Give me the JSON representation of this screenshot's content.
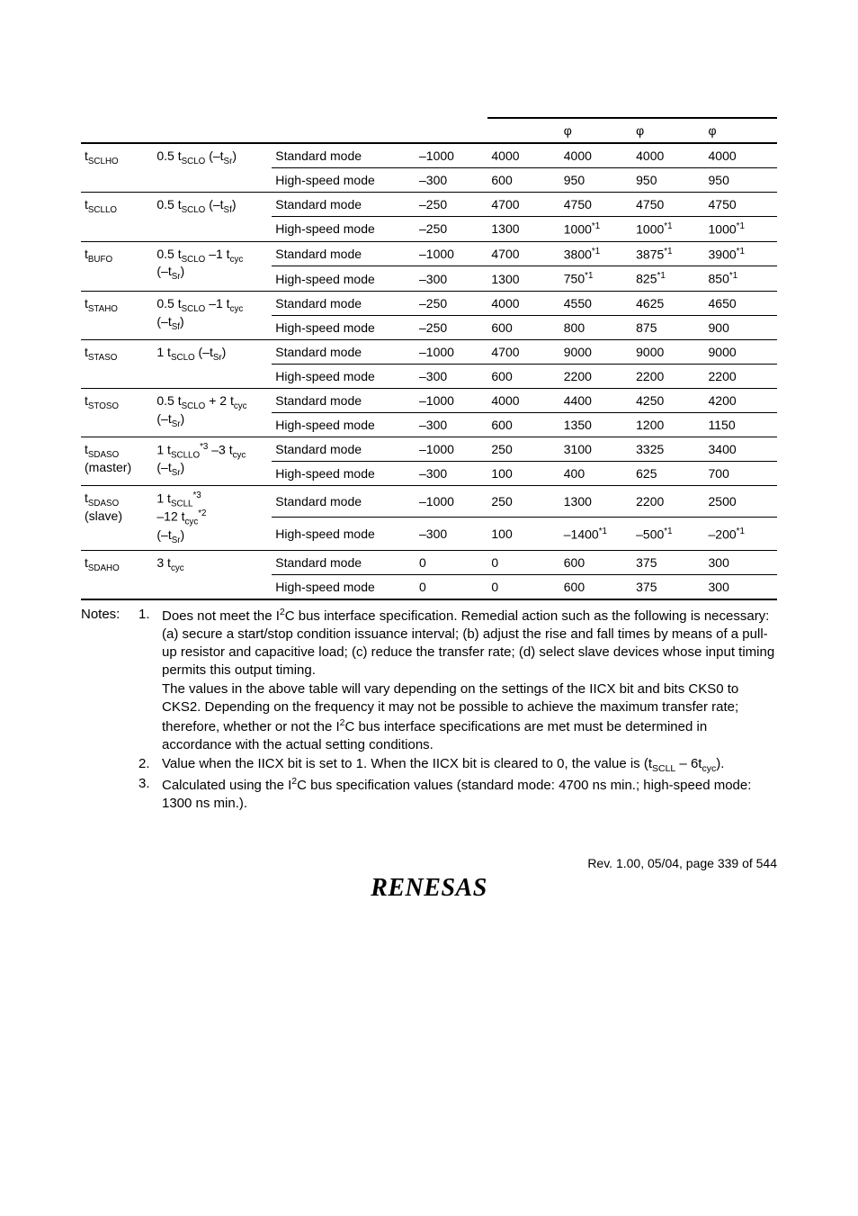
{
  "header": {
    "phi1": "φ",
    "phi2": "φ",
    "phi3": "φ"
  },
  "rows": [
    {
      "item_html": "t<sub>SCLHO</sub>",
      "formula_html": "0.5 t<sub>SCLO</sub> (–t<sub>Sr</sub>)",
      "modes": [
        {
          "mode": "Standard mode",
          "v1": "–1000",
          "v2": "4000",
          "c1": "4000",
          "c2": "4000",
          "c3": "4000"
        },
        {
          "mode": "High-speed mode",
          "v1": "–300",
          "v2": "600",
          "c1": "950",
          "c2": "950",
          "c3": "950"
        }
      ]
    },
    {
      "item_html": "t<sub>SCLLO</sub>",
      "formula_html": "0.5 t<sub>SCLO</sub> (–t<sub>Sf</sub>)",
      "modes": [
        {
          "mode": "Standard mode",
          "v1": "–250",
          "v2": "4700",
          "c1": "4750",
          "c2": "4750",
          "c3": "4750"
        },
        {
          "mode": "High-speed mode",
          "v1": "–250",
          "v2": "1300",
          "c1": "1000<sup>*1</sup>",
          "c2": "1000<sup>*1</sup>",
          "c3": "1000<sup>*1</sup>"
        }
      ]
    },
    {
      "item_html": "t<sub>BUFO</sub>",
      "formula_html": "0.5 t<sub>SCLO</sub> –1 t<sub>cyc</sub><br>(–t<sub>Sr</sub>)",
      "modes": [
        {
          "mode": "Standard mode",
          "v1": "–1000",
          "v2": "4700",
          "c1": "3800<sup>*1</sup>",
          "c2": "3875<sup>*1</sup>",
          "c3": "3900<sup>*1</sup>"
        },
        {
          "mode": "High-speed mode",
          "v1": "–300",
          "v2": "1300",
          "c1": "750<sup>*1</sup>",
          "c2": "825<sup>*1</sup>",
          "c3": "850<sup>*1</sup>"
        }
      ]
    },
    {
      "item_html": "t<sub>STAHO</sub>",
      "formula_html": "0.5 t<sub>SCLO</sub> –1 t<sub>cyc</sub><br>(–t<sub>Sf</sub>)",
      "modes": [
        {
          "mode": "Standard mode",
          "v1": "–250",
          "v2": "4000",
          "c1": "4550",
          "c2": "4625",
          "c3": "4650"
        },
        {
          "mode": "High-speed mode",
          "v1": "–250",
          "v2": "600",
          "c1": "800",
          "c2": "875",
          "c3": "900"
        }
      ]
    },
    {
      "item_html": "t<sub>STASO</sub>",
      "formula_html": "1 t<sub>SCLO</sub> (–t<sub>Sr</sub>)",
      "modes": [
        {
          "mode": "Standard mode",
          "v1": "–1000",
          "v2": "4700",
          "c1": "9000",
          "c2": "9000",
          "c3": "9000"
        },
        {
          "mode": "High-speed mode",
          "v1": "–300",
          "v2": "600",
          "c1": "2200",
          "c2": "2200",
          "c3": "2200"
        }
      ]
    },
    {
      "item_html": "t<sub>STOSO</sub>",
      "formula_html": "0.5 t<sub>SCLO</sub> + 2 t<sub>cyc</sub><br>(–t<sub>Sr</sub>)",
      "modes": [
        {
          "mode": "Standard mode",
          "v1": "–1000",
          "v2": "4000",
          "c1": "4400",
          "c2": "4250",
          "c3": "4200"
        },
        {
          "mode": "High-speed mode",
          "v1": "–300",
          "v2": "600",
          "c1": "1350",
          "c2": "1200",
          "c3": "1150"
        }
      ]
    },
    {
      "item_html": "t<sub>SDASO</sub><br>(master)",
      "formula_html": "1 t<sub>SCLLO</sub><sup>*3</sup> –3 t<sub>cyc</sub><br>(–t<sub>Sr</sub>)",
      "modes": [
        {
          "mode": "Standard mode",
          "v1": "–1000",
          "v2": "250",
          "c1": "3100",
          "c2": "3325",
          "c3": "3400"
        },
        {
          "mode": "High-speed mode",
          "v1": "–300",
          "v2": "100",
          "c1": "400",
          "c2": "625",
          "c3": "700"
        }
      ]
    },
    {
      "item_html": "t<sub>SDASO</sub><br>(slave)",
      "formula_html": "1 t<sub>SCLL</sub><sup>*3</sup><br>–12 t<sub>cyc</sub><sup>*2</sup><br>(–t<sub>Sr</sub>)",
      "modes": [
        {
          "mode": "Standard mode",
          "v1": "–1000",
          "v2": "250",
          "c1": "1300",
          "c2": "2200",
          "c3": "2500"
        },
        {
          "mode": "High-speed mode",
          "v1": "–300",
          "v2": "100",
          "c1": "–1400<sup>*1</sup>",
          "c2": "–500<sup>*1</sup>",
          "c3": "–200<sup>*1</sup>"
        }
      ]
    },
    {
      "item_html": "t<sub>SDAHO</sub>",
      "formula_html": "3 t<sub>cyc</sub>",
      "modes": [
        {
          "mode": "Standard mode",
          "v1": "0",
          "v2": "0",
          "c1": "600",
          "c2": "375",
          "c3": "300"
        },
        {
          "mode": "High-speed mode",
          "v1": "0",
          "v2": "0",
          "c1": "600",
          "c2": "375",
          "c3": "300"
        }
      ]
    }
  ],
  "notes": {
    "label": "Notes:",
    "items": [
      {
        "num": "1.",
        "text_html": "Does not meet the I<sup>2</sup>C bus interface specification. Remedial action such as the following is necessary: (a) secure a start/stop condition issuance interval; (b) adjust the rise and fall times by means of a pull-up resistor and capacitive load; (c) reduce the transfer rate; (d) select slave devices whose input timing permits this output timing.<br>The values in the above table will vary depending on the settings of the IICX bit and bits CKS0 to CKS2. Depending on the frequency it may not be possible to achieve the maximum transfer rate; therefore, whether or not the I<sup>2</sup>C bus interface specifications are met must be determined in accordance with the actual setting conditions."
      },
      {
        "num": "2.",
        "text_html": "Value when the IICX bit is set to 1. When the IICX bit is cleared to 0, the value is (t<sub>SCLL</sub> – 6t<sub>cyc</sub>)."
      },
      {
        "num": "3.",
        "text_html": "Calculated using the I<sup>2</sup>C bus specification values (standard mode: 4700 ns min.; high-speed mode: 1300 ns min.)."
      }
    ]
  },
  "footer": {
    "rev": "Rev. 1.00, 05/04, page 339 of 544",
    "logo": "RENESAS"
  },
  "colors": {
    "text": "#000000",
    "background": "#ffffff",
    "rule": "#000000"
  }
}
